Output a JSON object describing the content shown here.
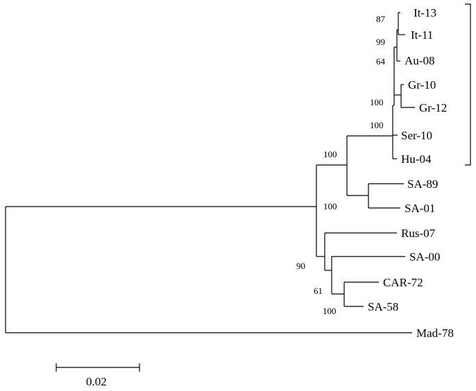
{
  "tree": {
    "taxa": {
      "it13": "It-13",
      "it11": "It-11",
      "au08": "Au-08",
      "gr10": "Gr-10",
      "gr12": "Gr-12",
      "ser10": "Ser-10",
      "hu04": "Hu-04",
      "sa89": "SA-89",
      "sa01": "SA-01",
      "rus07": "Rus-07",
      "sa00": "SA-00",
      "car72": "CAR-72",
      "sa58": "SA-58",
      "mad78": "Mad-78"
    },
    "bootstrap": {
      "it13_it11": "87",
      "italy_group": "99",
      "au_group": "64",
      "gr_group": "100",
      "european_clade": "100",
      "sa89_sa01": "100",
      "main_clade": "100",
      "rus_sa_group": "90",
      "sa00_group": "61",
      "car72_sa58": "100"
    },
    "scale_bar": {
      "label": "0.02"
    }
  }
}
